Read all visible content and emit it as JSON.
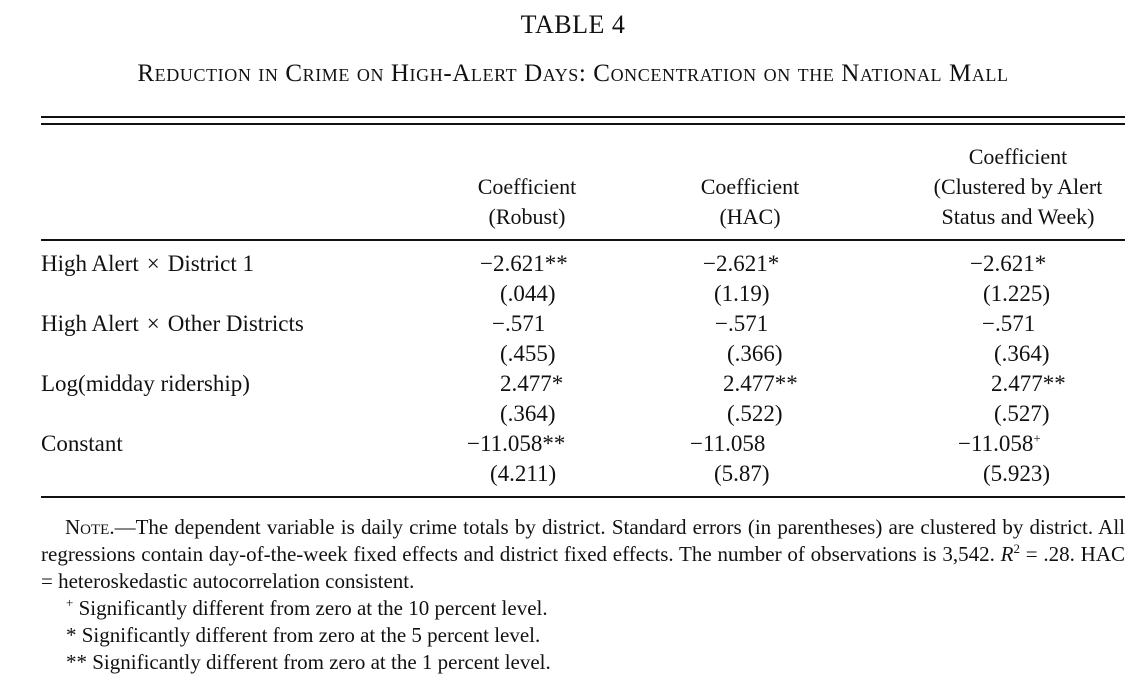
{
  "table": {
    "number": "TABLE 4",
    "title": "Reduction in Crime on High-Alert Days: Concentration on the National Mall",
    "columns": [
      {
        "lines": [
          "Coefficient",
          "(Robust)"
        ]
      },
      {
        "lines": [
          "Coefficient",
          "(HAC)"
        ]
      },
      {
        "lines": [
          "Coefficient",
          "(Clustered by Alert",
          "Status and Week)"
        ]
      }
    ],
    "rows": [
      {
        "label_parts": [
          "High Alert",
          "×",
          "District 1"
        ],
        "coef": [
          "−2.621**",
          "−2.621*",
          "−2.621*"
        ],
        "se": [
          "(.044)",
          "(1.19)",
          "(1.225)"
        ]
      },
      {
        "label_parts": [
          "High Alert",
          "×",
          "Other Districts"
        ],
        "coef": [
          "−.571",
          "−.571",
          "−.571"
        ],
        "se": [
          "(.455)",
          "(.366)",
          "(.364)"
        ]
      },
      {
        "label_parts": [
          "Log(midday ridership)"
        ],
        "coef": [
          "2.477*",
          "2.477**",
          "2.477**"
        ],
        "se": [
          "(.364)",
          "(.522)",
          "(.527)"
        ]
      },
      {
        "label_parts": [
          "Constant"
        ],
        "coef": [
          "−11.058**",
          "−11.058",
          "−11.058"
        ],
        "coef_sup": [
          "",
          "",
          "+"
        ],
        "se": [
          "(4.211)",
          "(5.87)",
          "(5.923)"
        ]
      }
    ],
    "note": {
      "lead": "Note.—",
      "text_1": "The dependent variable is daily crime totals by district. Standard errors (in parentheses) are clustered by district. All regressions contain day-of-the-week fixed effects and district fixed effects. The number of observations is 3,542. ",
      "r2_symbol": "R",
      "r2_exp": "2",
      "text_2": " = .28. HAC = heteroskedastic autocorrelation consistent."
    },
    "footnotes": [
      {
        "symbol": "+",
        "text": "Significantly different from zero at the 10 percent level."
      },
      {
        "symbol": "*",
        "text": "Significantly different from zero at the 5 percent level."
      },
      {
        "symbol": "**",
        "text": "Significantly different from zero at the 1 percent level."
      }
    ]
  }
}
